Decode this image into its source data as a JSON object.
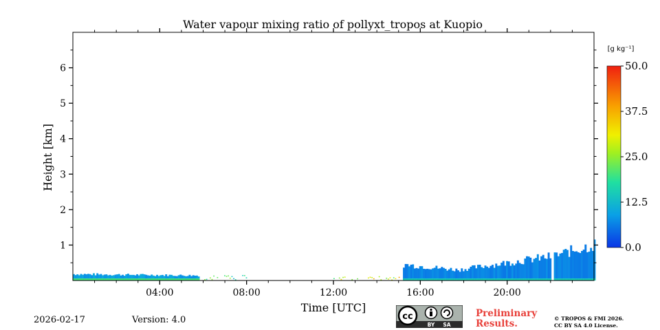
{
  "chart_data": {
    "type": "heatmap",
    "title": "Water vapour mixing ratio of pollyxt_tropos at Kuopio",
    "xlabel": "Time [UTC]",
    "ylabel": "Height [km]",
    "xlim_hours": [
      0,
      24
    ],
    "ylim_km": [
      0,
      7
    ],
    "x_ticks": [
      {
        "hour": 4,
        "label": "04:00"
      },
      {
        "hour": 8,
        "label": "08:00"
      },
      {
        "hour": 12,
        "label": "12:00"
      },
      {
        "hour": 16,
        "label": "16:00"
      },
      {
        "hour": 20,
        "label": "20:00"
      }
    ],
    "y_ticks": [
      {
        "km": 1,
        "label": "1"
      },
      {
        "km": 2,
        "label": "2"
      },
      {
        "km": 3,
        "label": "3"
      },
      {
        "km": 4,
        "label": "4"
      },
      {
        "km": 5,
        "label": "5"
      },
      {
        "km": 6,
        "label": "6"
      }
    ],
    "colorbar": {
      "unit_label": "[g kg⁻¹]",
      "range": [
        0,
        50
      ],
      "ticks": [
        {
          "value": 0,
          "label": "0.0"
        },
        {
          "value": 12.5,
          "label": "12.5"
        },
        {
          "value": 25,
          "label": "25.0"
        },
        {
          "value": 37.5,
          "label": "37.5"
        },
        {
          "value": 50,
          "label": "50.0"
        }
      ],
      "colormap": [
        "#0a35e6",
        "#0aa0e6",
        "#20e0a0",
        "#a0f020",
        "#f0f000",
        "#f8a000",
        "#f02010"
      ]
    },
    "data_regions": [
      {
        "start_hour": 0.0,
        "end_hour": 5.8,
        "top_km_start": 0.18,
        "top_km_end": 0.14,
        "value": 8,
        "density": "dense"
      },
      {
        "start_hour": 5.8,
        "end_hour": 8.0,
        "top_km_start": 0.1,
        "top_km_end": 0.15,
        "value": 18,
        "density": "sparse"
      },
      {
        "start_hour": 12.0,
        "end_hour": 15.2,
        "top_km_start": 0.12,
        "top_km_end": 0.1,
        "value": 30,
        "density": "sparse"
      },
      {
        "start_hour": 15.2,
        "end_hour": 17.7,
        "top_km_start": 0.45,
        "top_km_end": 0.3,
        "value": 6,
        "density": "dense"
      },
      {
        "start_hour": 17.7,
        "end_hour": 22.0,
        "top_km_start": 0.3,
        "top_km_end": 0.68,
        "value": 6,
        "density": "dense"
      },
      {
        "start_hour": 22.15,
        "end_hour": 24.0,
        "top_km_start": 0.7,
        "top_km_end": 1.02,
        "value": 6,
        "density": "dense"
      }
    ]
  },
  "footer": {
    "date": "2026-02-17",
    "version": "Version: 4.0",
    "preliminary_line1": "Preliminary",
    "preliminary_line2": "Results.",
    "copyright_line1": "© TROPOS & FMI 2026.",
    "copyright_line2": "CC BY SA 4.0 License.",
    "license_badge": {
      "cc": "cc",
      "by": "BY",
      "sa": "SA"
    }
  },
  "colors": {
    "preliminary": "#e8403a",
    "badge_bg": "#aab3ad",
    "badge_dark": "#2b2b2b"
  }
}
